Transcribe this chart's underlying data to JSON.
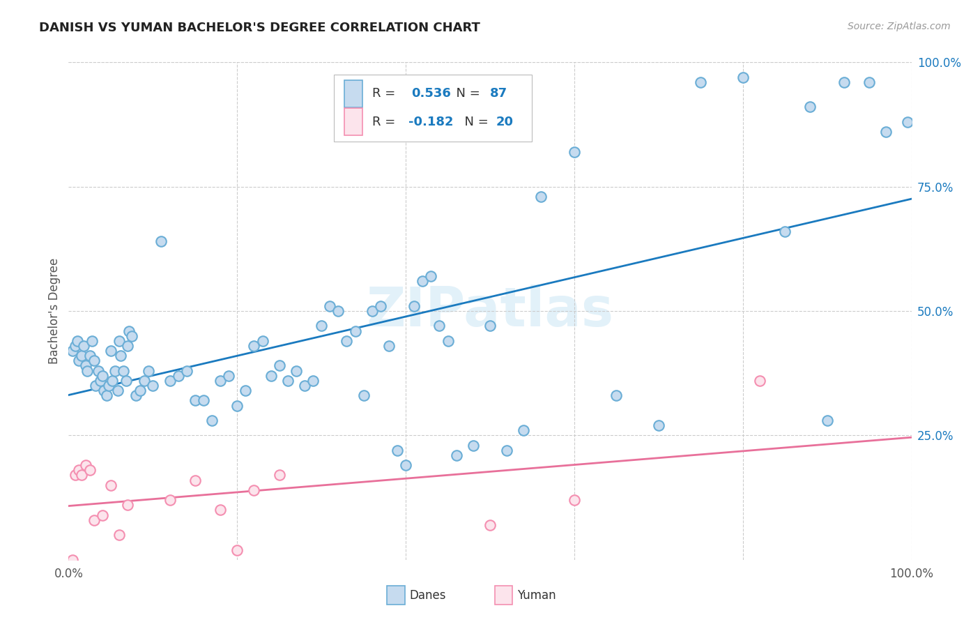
{
  "title": "DANISH VS YUMAN BACHELOR'S DEGREE CORRELATION CHART",
  "source": "Source: ZipAtlas.com",
  "ylabel": "Bachelor's Degree",
  "xlim": [
    0.0,
    1.0
  ],
  "ylim": [
    0.0,
    1.0
  ],
  "danes_R": 0.536,
  "danes_N": 87,
  "yuman_R": -0.182,
  "yuman_N": 20,
  "danes_edge_color": "#6baed6",
  "danes_face_color": "#c6dbef",
  "yuman_edge_color": "#f48fb1",
  "yuman_face_color": "#fce4ec",
  "danes_line_color": "#1a7abf",
  "yuman_line_color": "#e8709a",
  "value_color": "#1a7abf",
  "grid_color": "#cccccc",
  "title_color": "#222222",
  "source_color": "#999999",
  "ylabel_color": "#555555",
  "watermark_color": "#d0e8f5",
  "tick_color": "#1a7abf",
  "danes_x": [
    0.005,
    0.008,
    0.01,
    0.012,
    0.015,
    0.018,
    0.02,
    0.022,
    0.025,
    0.028,
    0.03,
    0.032,
    0.035,
    0.038,
    0.04,
    0.042,
    0.045,
    0.048,
    0.05,
    0.052,
    0.055,
    0.058,
    0.06,
    0.062,
    0.065,
    0.068,
    0.07,
    0.072,
    0.075,
    0.08,
    0.085,
    0.09,
    0.095,
    0.1,
    0.11,
    0.12,
    0.13,
    0.14,
    0.15,
    0.16,
    0.17,
    0.18,
    0.19,
    0.2,
    0.21,
    0.22,
    0.23,
    0.24,
    0.25,
    0.26,
    0.27,
    0.28,
    0.29,
    0.3,
    0.31,
    0.32,
    0.33,
    0.34,
    0.35,
    0.36,
    0.37,
    0.38,
    0.39,
    0.4,
    0.41,
    0.42,
    0.43,
    0.44,
    0.45,
    0.46,
    0.48,
    0.5,
    0.52,
    0.54,
    0.56,
    0.6,
    0.65,
    0.7,
    0.75,
    0.8,
    0.85,
    0.88,
    0.9,
    0.92,
    0.95,
    0.97,
    0.995
  ],
  "danes_y": [
    0.42,
    0.43,
    0.44,
    0.4,
    0.41,
    0.43,
    0.39,
    0.38,
    0.41,
    0.44,
    0.4,
    0.35,
    0.38,
    0.36,
    0.37,
    0.34,
    0.33,
    0.35,
    0.42,
    0.36,
    0.38,
    0.34,
    0.44,
    0.41,
    0.38,
    0.36,
    0.43,
    0.46,
    0.45,
    0.33,
    0.34,
    0.36,
    0.38,
    0.35,
    0.64,
    0.36,
    0.37,
    0.38,
    0.32,
    0.32,
    0.28,
    0.36,
    0.37,
    0.31,
    0.34,
    0.43,
    0.44,
    0.37,
    0.39,
    0.36,
    0.38,
    0.35,
    0.36,
    0.47,
    0.51,
    0.5,
    0.44,
    0.46,
    0.33,
    0.5,
    0.51,
    0.43,
    0.22,
    0.19,
    0.51,
    0.56,
    0.57,
    0.47,
    0.44,
    0.21,
    0.23,
    0.47,
    0.22,
    0.26,
    0.73,
    0.82,
    0.33,
    0.27,
    0.96,
    0.97,
    0.66,
    0.91,
    0.28,
    0.96,
    0.96,
    0.86,
    0.88
  ],
  "yuman_x": [
    0.005,
    0.008,
    0.012,
    0.015,
    0.02,
    0.025,
    0.03,
    0.04,
    0.05,
    0.06,
    0.07,
    0.12,
    0.15,
    0.18,
    0.2,
    0.22,
    0.25,
    0.5,
    0.6,
    0.82
  ],
  "yuman_y": [
    0.0,
    0.17,
    0.18,
    0.17,
    0.19,
    0.18,
    0.08,
    0.09,
    0.15,
    0.05,
    0.11,
    0.12,
    0.16,
    0.1,
    0.02,
    0.14,
    0.17,
    0.07,
    0.12,
    0.36
  ]
}
